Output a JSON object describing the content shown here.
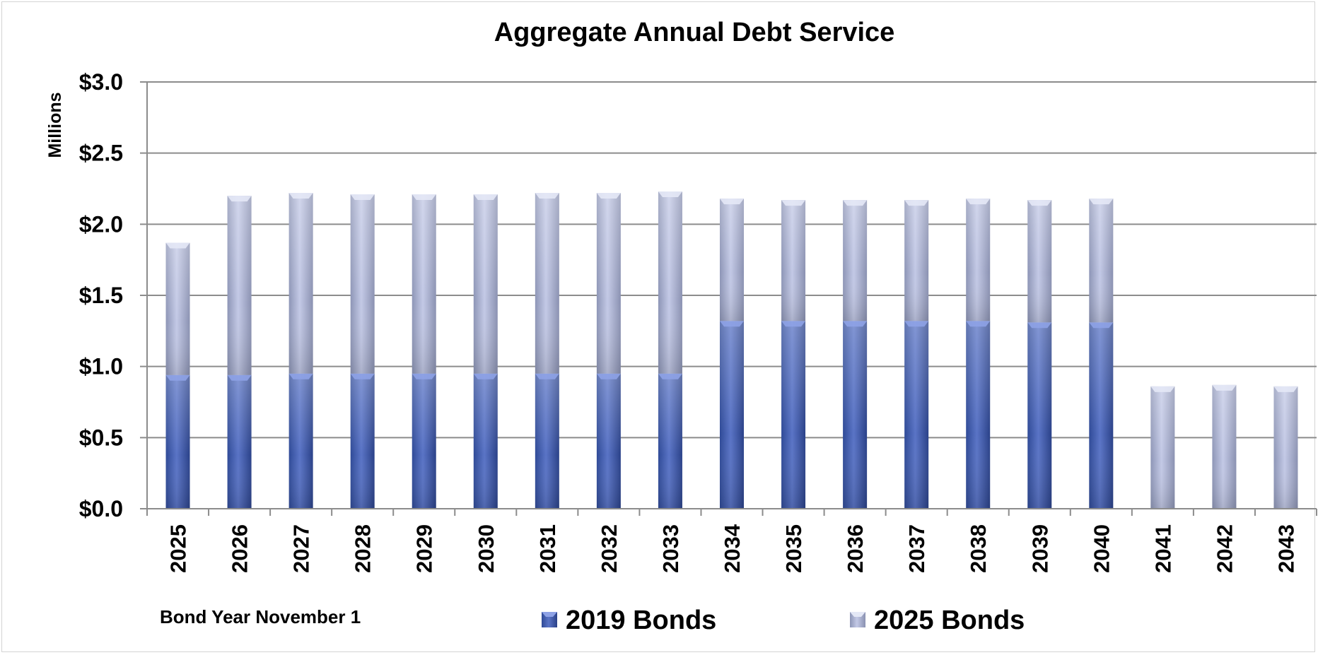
{
  "chart_data": {
    "type": "bar",
    "stacked": true,
    "title": "Aggregate Annual Debt Service",
    "ylabel": "Millions",
    "xlabel": "Bond Year November 1",
    "ylim": [
      0,
      3
    ],
    "yticks": [
      "$0.0",
      "$0.5",
      "$1.0",
      "$1.5",
      "$2.0",
      "$2.5",
      "$3.0"
    ],
    "ytick_values": [
      0,
      0.5,
      1.0,
      1.5,
      2.0,
      2.5,
      3.0
    ],
    "grid": true,
    "legend_position": "bottom",
    "categories": [
      "2025",
      "2026",
      "2027",
      "2028",
      "2029",
      "2030",
      "2031",
      "2032",
      "2033",
      "2034",
      "2035",
      "2036",
      "2037",
      "2038",
      "2039",
      "2040",
      "2041",
      "2042",
      "2043"
    ],
    "series": [
      {
        "name": "2019 Bonds",
        "color": "#4a63b5",
        "values": [
          0.94,
          0.94,
          0.95,
          0.95,
          0.95,
          0.95,
          0.95,
          0.95,
          0.95,
          1.32,
          1.32,
          1.32,
          1.32,
          1.32,
          1.31,
          1.31,
          0,
          0,
          0
        ]
      },
      {
        "name": "2025 Bonds",
        "color": "#aeb6d9",
        "values": [
          0.93,
          1.26,
          1.27,
          1.26,
          1.26,
          1.26,
          1.27,
          1.27,
          1.28,
          0.86,
          0.85,
          0.85,
          0.85,
          0.86,
          0.86,
          0.87,
          0.86,
          0.87,
          0.86
        ]
      }
    ]
  }
}
